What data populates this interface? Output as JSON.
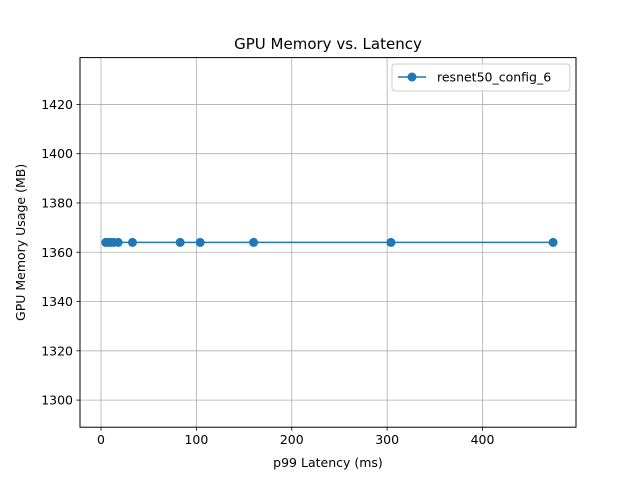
{
  "chart_data": {
    "type": "line",
    "title": "GPU Memory vs. Latency",
    "xlabel": "p99 Latency (ms)",
    "ylabel": "GPU Memory Usage (MB)",
    "xlim": [
      -22,
      498
    ],
    "ylim": [
      1289,
      1439
    ],
    "xticks": [
      0,
      100,
      200,
      300,
      400
    ],
    "yticks": [
      1300,
      1320,
      1340,
      1360,
      1380,
      1400,
      1420
    ],
    "grid": true,
    "legend_position": "top-right",
    "series": [
      {
        "name": "resnet50_config_6",
        "color": "#1f77b4",
        "marker": "circle",
        "x": [
          5,
          7,
          10,
          13,
          18,
          33,
          83,
          104,
          160,
          304,
          474
        ],
        "y": [
          1364,
          1364,
          1364,
          1364,
          1364,
          1364,
          1364,
          1364,
          1364,
          1364,
          1364
        ]
      }
    ]
  }
}
